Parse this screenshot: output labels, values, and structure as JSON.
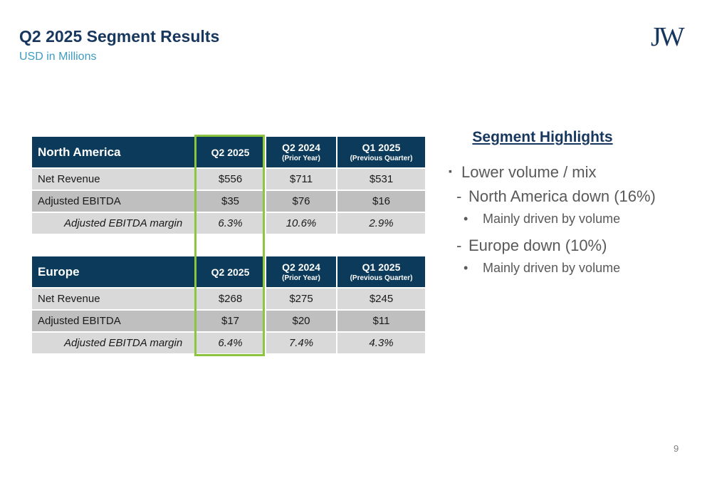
{
  "header": {
    "title": "Q2 2025 Segment Results",
    "subtitle": "USD in Millions",
    "logo": "JW"
  },
  "tables": [
    {
      "name": "North America",
      "columns": [
        {
          "label": "Q2 2025"
        },
        {
          "label": "Q2 2024",
          "sub": "(Prior Year)"
        },
        {
          "label": "Q1 2025",
          "sub": "(Previous Quarter)"
        }
      ],
      "rows": [
        [
          "Net Revenue",
          "$556",
          "$711",
          "$531"
        ],
        [
          "Adjusted EBITDA",
          "$35",
          "$76",
          "$16"
        ],
        [
          "Adjusted EBITDA margin",
          "6.3%",
          "10.6%",
          "2.9%"
        ]
      ]
    },
    {
      "name": "Europe",
      "columns": [
        {
          "label": "Q2 2025"
        },
        {
          "label": "Q2 2024",
          "sub": "(Prior Year)"
        },
        {
          "label": "Q1 2025",
          "sub": "(Previous Quarter)"
        }
      ],
      "rows": [
        [
          "Net Revenue",
          "$268",
          "$275",
          "$245"
        ],
        [
          "Adjusted EBITDA",
          "$17",
          "$20",
          "$11"
        ],
        [
          "Adjusted EBITDA margin",
          "6.4%",
          "7.4%",
          "4.3%"
        ]
      ]
    }
  ],
  "highlights": {
    "title": "Segment Highlights",
    "items": [
      {
        "level": 1,
        "text": "Lower volume / mix"
      },
      {
        "level": 2,
        "text": "North America down (16%)"
      },
      {
        "level": 3,
        "text": "Mainly driven by volume"
      },
      {
        "level": 2,
        "text": "Europe down (10%)"
      },
      {
        "level": 3,
        "text": "Mainly driven by volume"
      }
    ]
  },
  "page_number": "9"
}
